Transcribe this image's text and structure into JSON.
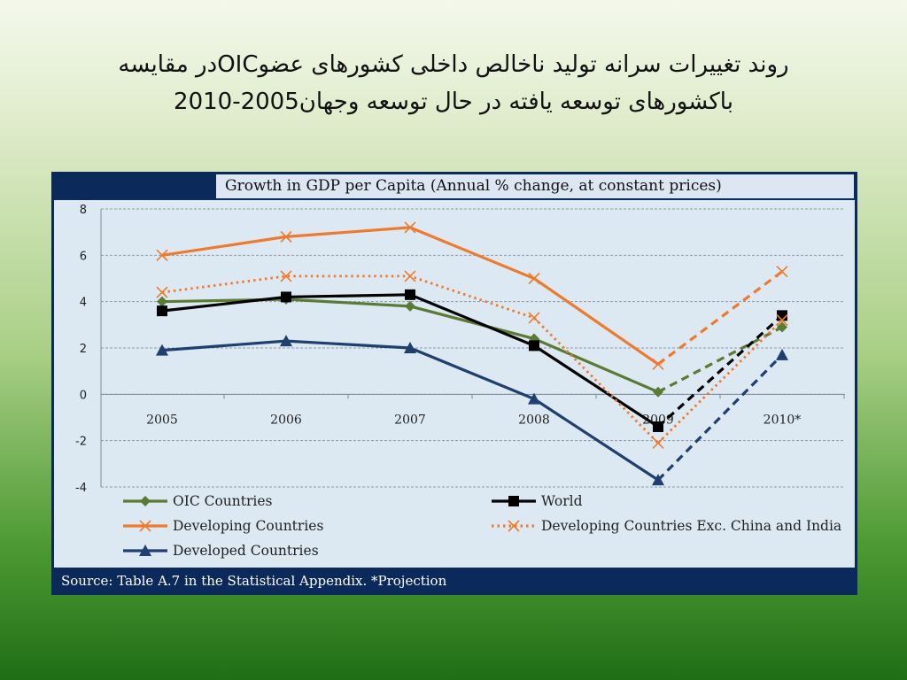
{
  "slide": {
    "title_line1": "روند تغییرات  سرانه تولید ناخالص داخلی کشورهای عضوOICدر مقایسه",
    "title_line2": "باکشورهای توسعه یافته در حال توسعه وجهان2005-2010"
  },
  "chart_data": {
    "type": "line",
    "title": "Growth in GDP per Capita (Annual % change, at constant prices)",
    "source": "Source: Table A.7 in the Statistical Appendix. *Projection",
    "categories": [
      "2005",
      "2006",
      "2007",
      "2008",
      "2009",
      "2010*"
    ],
    "ylim": [
      -4,
      8
    ],
    "yticks": [
      "8",
      "6",
      "4",
      "2",
      "0",
      "-2",
      "-4"
    ],
    "grid": true,
    "legend_position": "bottom",
    "projection_from_index": 4,
    "series": [
      {
        "name": "OIC Countries",
        "color": "#5b7a34",
        "marker": "diamond",
        "dashed": false,
        "values": [
          4.0,
          4.1,
          3.8,
          2.4,
          0.1,
          2.9
        ]
      },
      {
        "name": "World",
        "color": "#000000",
        "marker": "square",
        "dashed": false,
        "values": [
          3.6,
          4.2,
          4.3,
          2.1,
          -1.4,
          3.4
        ]
      },
      {
        "name": "Developing Countries",
        "color": "#ee7a2e",
        "marker": "cross",
        "dashed": false,
        "values": [
          6.0,
          6.8,
          7.2,
          5.0,
          1.3,
          5.3
        ]
      },
      {
        "name": "Developing Countries Exc. China and India",
        "color": "#ee7a2e",
        "marker": "cross",
        "dashed": true,
        "values": [
          4.4,
          5.1,
          5.1,
          3.3,
          -2.1,
          3.2
        ]
      },
      {
        "name": "Developed Countries",
        "color": "#1f3f6e",
        "marker": "triangle",
        "dashed": false,
        "values": [
          1.9,
          2.3,
          2.0,
          -0.2,
          -3.7,
          1.7
        ]
      }
    ]
  }
}
